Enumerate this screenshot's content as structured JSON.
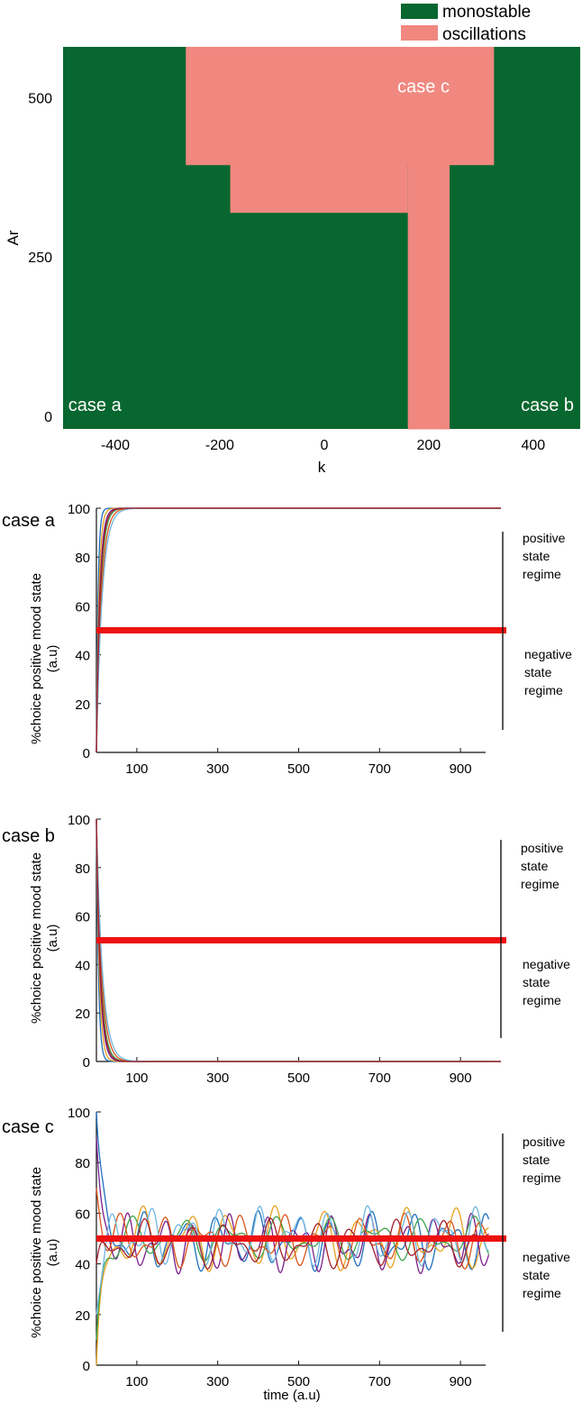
{
  "colors": {
    "monostable": "#08672f",
    "oscillations": "#f08880",
    "threshold": "#ee1111",
    "palette": [
      "#1f6fbf",
      "#e8a020",
      "#7a1f8a",
      "#3fa34d",
      "#d9541a",
      "#6fb6e0",
      "#a21f2d"
    ]
  },
  "chart_data": [
    {
      "id": "phase",
      "type": "heatmap",
      "xlabel": "k",
      "ylabel": "Ar",
      "xlim": [
        -500,
        490
      ],
      "ylim": [
        -20,
        580
      ],
      "xticks": [
        -400,
        -200,
        0,
        200,
        400
      ],
      "yticks": [
        0,
        250,
        500
      ],
      "legend": [
        {
          "key": "monostable",
          "label": "monostable"
        },
        {
          "key": "oscillations",
          "label": "oscillations"
        }
      ],
      "legend_position": "top-right-outside",
      "regions": [
        {
          "state": "oscillations",
          "k": [
            -265,
            325
          ],
          "ar": [
            395,
            580
          ]
        },
        {
          "state": "oscillations",
          "k": [
            -180,
            160
          ],
          "ar": [
            320,
            395
          ]
        },
        {
          "state": "oscillations",
          "k": [
            160,
            240
          ],
          "ar": [
            -20,
            395
          ]
        }
      ],
      "annotations": [
        {
          "text": "case a",
          "k": -490,
          "ar": 0
        },
        {
          "text": "case b",
          "k": 478,
          "ar": 0
        },
        {
          "text": "case c",
          "k": 190,
          "ar": 500
        }
      ]
    },
    {
      "id": "case-a",
      "type": "line",
      "panel_label": "case a",
      "ylabel": "%choice  positive mood state (a.u)",
      "xlabel": "",
      "xlim": [
        0,
        1000
      ],
      "ylim": [
        0,
        100
      ],
      "xticks": [
        100,
        300,
        500,
        700,
        900
      ],
      "yticks": [
        0,
        20,
        40,
        60,
        80,
        100
      ],
      "threshold": 50,
      "regime_labels": {
        "positive": "positive state regime",
        "negative": "negative state regime"
      },
      "behavior": "converge-high",
      "series": [
        {
          "start": 0,
          "end": 100,
          "tau": 4
        },
        {
          "start": 0,
          "end": 100,
          "tau": 6
        },
        {
          "start": 0,
          "end": 100,
          "tau": 8
        },
        {
          "start": 0,
          "end": 100,
          "tau": 10
        },
        {
          "start": 0,
          "end": 100,
          "tau": 12
        },
        {
          "start": 0,
          "end": 100,
          "tau": 14
        },
        {
          "start": 0,
          "end": 100,
          "tau": 9
        }
      ]
    },
    {
      "id": "case-b",
      "type": "line",
      "panel_label": "case b",
      "ylabel": "%choice  positive mood state (a.u)",
      "xlabel": "",
      "xlim": [
        0,
        1000
      ],
      "ylim": [
        0,
        100
      ],
      "xticks": [
        100,
        300,
        500,
        700,
        900
      ],
      "yticks": [
        0,
        20,
        40,
        60,
        80,
        100
      ],
      "threshold": 50,
      "regime_labels": {
        "positive": "positive state regime",
        "negative": "negative state regime"
      },
      "behavior": "converge-low",
      "series": [
        {
          "start": 100,
          "end": 0,
          "tau": 5
        },
        {
          "start": 100,
          "end": 0,
          "tau": 7
        },
        {
          "start": 100,
          "end": 0,
          "tau": 9
        },
        {
          "start": 100,
          "end": 0,
          "tau": 11
        },
        {
          "start": 100,
          "end": 0,
          "tau": 13
        },
        {
          "start": 100,
          "end": 0,
          "tau": 15
        },
        {
          "start": 100,
          "end": 0,
          "tau": 10
        }
      ]
    },
    {
      "id": "case-c",
      "type": "line",
      "panel_label": "case c",
      "ylabel": "%choice  positive mood state (a.u)",
      "xlabel": "time (a.u)",
      "xlim": [
        0,
        1000
      ],
      "ylim": [
        0,
        100
      ],
      "xticks": [
        100,
        300,
        500,
        700,
        900
      ],
      "yticks": [
        0,
        20,
        40,
        60,
        80,
        100
      ],
      "threshold": 50,
      "regime_labels": {
        "positive": "positive state regime",
        "negative": "negative state regime"
      },
      "behavior": "oscillate",
      "series": [
        {
          "start": 100,
          "mean": 49,
          "amp": 12,
          "period": 95,
          "phase": 0.3
        },
        {
          "start": 0,
          "mean": 50,
          "amp": 13,
          "period": 110,
          "phase": 1.4
        },
        {
          "start": 90,
          "mean": 48,
          "amp": 12,
          "period": 85,
          "phase": 2.2
        },
        {
          "start": 10,
          "mean": 50,
          "amp": 9,
          "period": 120,
          "phase": 3.1
        },
        {
          "start": 70,
          "mean": 49,
          "amp": 11,
          "period": 100,
          "phase": 4.0
        },
        {
          "start": 20,
          "mean": 51,
          "amp": 12,
          "period": 90,
          "phase": 5.0
        },
        {
          "start": 40,
          "mean": 48,
          "amp": 10,
          "period": 105,
          "phase": 0.9
        }
      ]
    }
  ]
}
